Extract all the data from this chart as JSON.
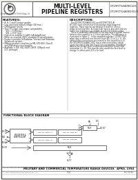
{
  "bg_color": "#e8e8e4",
  "page_bg": "#f0f0ec",
  "border_color": "#333333",
  "header_bg": "#ffffff",
  "title_line1": "MULTI-LEVEL",
  "title_line2": "PIPELINE REGISTERS",
  "part_numbers_top": "IDT29FCT520A/B/C1/D1",
  "part_numbers_bot": "IDT29FCT524A/B/D/D1/D1",
  "logo_text": "IDT",
  "company_text": "Integrated Device Technology, Inc.",
  "features_title": "FEATURES:",
  "features": [
    "• A, B, C and D output grades",
    "• Low input and output voltage (4V max.)",
    "• CMOS power levels",
    "• True TTL input and output compatibility",
    "     VCC = 5.5V(max.)",
    "     VOL = 0.5V (typ.)",
    "• High-drive outputs (1 mA/6 mA data/A bus)",
    "• Meets or exceeds JEDEC standard 18 specifications",
    "• Product available in Radiation Tolerant and Radiation",
    "   Enhanced versions",
    "• Military product-compliant to MIL-STD-883, Class B",
    "   and JFLA-device-on-a-module",
    "• Available in DIP, SOJ, SSOP, QSOP, CERpack and",
    "   LCC packages"
  ],
  "description_title": "DESCRIPTION:",
  "description_text": [
    "  The IDT29FCT520A/B/C1/D1 and IDT29FCT521 A/",
    "B/C1/D1 each contain four 8-bit positive-edge-triggered",
    "registers. These may be operated as 8-level full or as a",
    "single 4-level pipeline. A single 8-bit input is provided and any",
    "of the four registers is accessible at most for 4 data output.",
    "  There is essentially differently in the way data is routed (routed",
    "between the registers in 1-3-level operation. The difference is",
    "illustrated in Figure 1.  In the standard registers IDT29FCT520",
    "when data is entered into the first level (A = D or 1 = 1), the",
    "address/data connections are treated in the second level. In",
    "the IDT29FCT521/A/B/C1/D1, these interconnections simply",
    "cause the data in the first level to be overwritten. Transfer of",
    "data to the second level is addressed using the 4-level shift",
    "instruction (I = D). This transfer also causes the first level to",
    "change. In other parts 4-8 is for load."
  ],
  "functional_block_title": "FUNCTIONAL BLOCK DIAGRAM",
  "footer_left": "MILITARY AND COMMERCIAL TEMPERATURE RANGE DEVICES",
  "footer_right": "APRIL 1994",
  "footer_trademark": "The IDT logo is a registered trademark of Integrated Device Technology, Inc.",
  "footer_copy": "© 1994 Integrated Device Technology, Inc.",
  "page_num": "512",
  "doc_num": "DSC-0013D"
}
